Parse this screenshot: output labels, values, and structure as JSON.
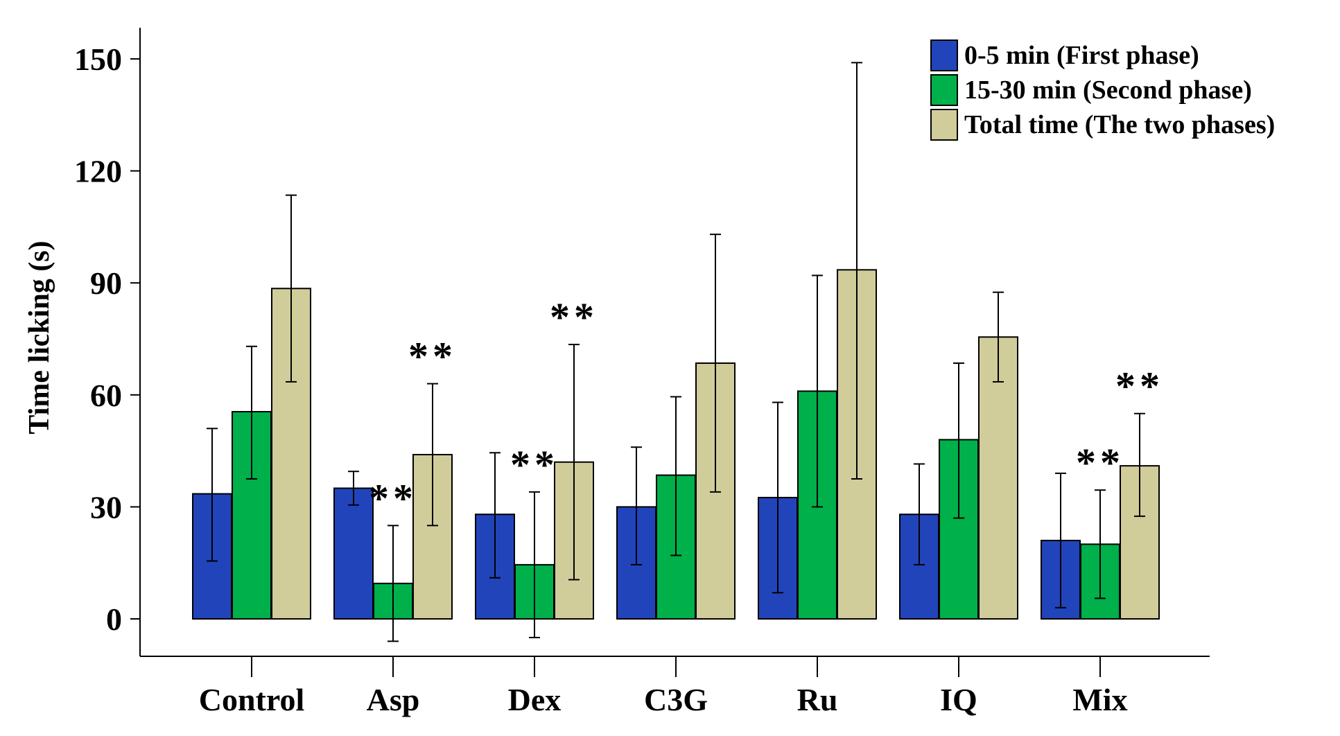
{
  "chart_data": {
    "type": "bar",
    "title": "",
    "xlabel": "",
    "ylabel": "Time licking (s)",
    "ylim": [
      -10,
      158
    ],
    "yticks": [
      0,
      30,
      60,
      90,
      120,
      150
    ],
    "ytick_labels": [
      "0",
      "30",
      "60",
      "90",
      "120",
      "150"
    ],
    "categories": [
      "Control",
      "Asp",
      "Dex",
      "C3G",
      "Ru",
      "IQ",
      "Mix"
    ],
    "legend_position": "top-right",
    "grid": false,
    "error_bars": true,
    "series": [
      {
        "name": "0-5 min   (First phase)",
        "color": "#2244bb",
        "values": [
          33.5,
          35,
          28,
          30,
          32.5,
          28,
          21
        ],
        "err_low": [
          15.5,
          30.5,
          11,
          14.5,
          7,
          14.5,
          3
        ],
        "err_high": [
          51,
          39.5,
          44.5,
          46,
          58,
          41.5,
          39
        ],
        "annotations": [
          "",
          "",
          "",
          "",
          "",
          "",
          ""
        ]
      },
      {
        "name": "15-30 min (Second phase)",
        "color": "#00b04a",
        "values": [
          55.5,
          9.5,
          14.5,
          38.5,
          61,
          48,
          20
        ],
        "err_low": [
          37.5,
          -6,
          -5,
          17,
          30,
          27,
          5.5
        ],
        "err_high": [
          73,
          25,
          34,
          59.5,
          92,
          68.5,
          34.5
        ],
        "annotations": [
          "",
          "**",
          "**",
          "",
          "",
          "",
          "**"
        ]
      },
      {
        "name": "Total time (The two phases)",
        "color": "#d0cd9b",
        "values": [
          88.5,
          44,
          42,
          68.5,
          93.5,
          75.5,
          41
        ],
        "err_low": [
          63.5,
          25,
          10.5,
          34,
          37.5,
          63.5,
          27.5
        ],
        "err_high": [
          113.5,
          63,
          73.5,
          103,
          149,
          87.5,
          55
        ],
        "annotations": [
          "",
          "**",
          "**",
          "",
          "",
          "",
          "**"
        ]
      }
    ]
  }
}
